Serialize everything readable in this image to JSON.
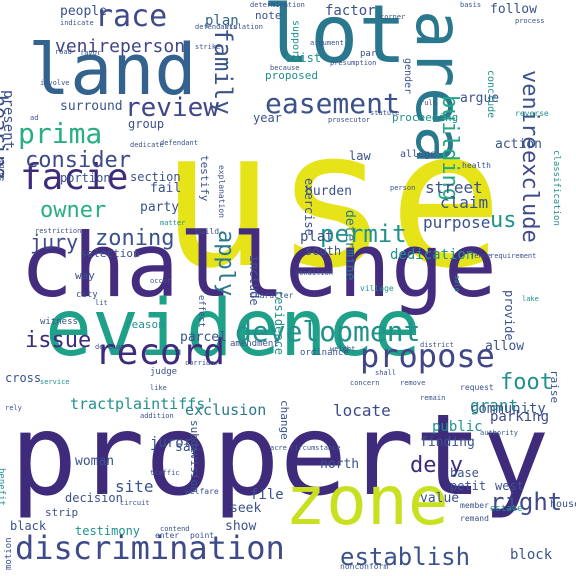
{
  "words": [
    {
      "text": "use",
      "color": "#e6e419"
    },
    {
      "text": "property",
      "color": "#3f2b7c"
    },
    {
      "text": "challenge",
      "color": "#442d7f"
    },
    {
      "text": "evidence",
      "color": "#1fa088"
    },
    {
      "text": "land",
      "color": "#32628d"
    },
    {
      "text": "lot",
      "color": "#2a788e"
    },
    {
      "text": "area",
      "color": "#2a788e"
    },
    {
      "text": "zone",
      "color": "#c8e020"
    },
    {
      "text": "discrimination",
      "color": "#3e4a89"
    },
    {
      "text": "record",
      "color": "#3f2b7c"
    },
    {
      "text": "propose",
      "color": "#404688"
    },
    {
      "text": "development",
      "color": "#21918c"
    },
    {
      "text": "race",
      "color": "#3e4a89"
    },
    {
      "text": "easement",
      "color": "#3b528b"
    },
    {
      "text": "facie",
      "color": "#3f2b7c"
    },
    {
      "text": "prima",
      "color": "#29af7f"
    },
    {
      "text": "review",
      "color": "#404688"
    },
    {
      "text": "family",
      "color": "#3b528b"
    },
    {
      "text": "consider",
      "color": "#3e4a89"
    },
    {
      "text": "owner",
      "color": "#29af7f"
    },
    {
      "text": "zoning",
      "color": "#3b528b"
    },
    {
      "text": "permit",
      "color": "#21918c"
    },
    {
      "text": "apply",
      "color": "#2a788e"
    },
    {
      "text": "jury",
      "color": "#3e4a89"
    },
    {
      "text": "issue",
      "color": "#3f2b7c"
    },
    {
      "text": "foot",
      "color": "#21918c"
    },
    {
      "text": "hearing",
      "color": "#3e4a89"
    },
    {
      "text": "venireperson",
      "color": "#404688"
    },
    {
      "text": "building",
      "color": "#22a884"
    },
    {
      "text": "venire",
      "color": "#3b528b"
    },
    {
      "text": "exclude",
      "color": "#3e4a89"
    },
    {
      "text": "right",
      "color": "#3e4a89"
    },
    {
      "text": "establish",
      "color": "#3b528b"
    },
    {
      "text": "deny",
      "color": "#3f2b7c"
    },
    {
      "text": "us",
      "color": "#21918c"
    },
    {
      "text": "street",
      "color": "#3b528b"
    },
    {
      "text": "claim",
      "color": "#3b528b"
    },
    {
      "text": "grant",
      "color": "#21918c"
    },
    {
      "text": "locate",
      "color": "#3e4a89"
    },
    {
      "text": "exclusion",
      "color": "#2a788e"
    },
    {
      "text": "purpose",
      "color": "#3b528b"
    },
    {
      "text": "tract",
      "color": "#21918c"
    },
    {
      "text": "plaintiffs'",
      "color": "#21918c"
    },
    {
      "text": "site",
      "color": "#3b528b"
    },
    {
      "text": "community",
      "color": "#3b528b"
    },
    {
      "text": "people",
      "color": "#3b528b"
    },
    {
      "text": "plan",
      "color": "#32628d"
    },
    {
      "text": "factor",
      "color": "#3b528b"
    },
    {
      "text": "determine",
      "color": "#2a788e"
    },
    {
      "text": "plat",
      "color": "#3b528b"
    },
    {
      "text": "dedication",
      "color": "#21918c"
    },
    {
      "text": "parking",
      "color": "#3e4a89"
    },
    {
      "text": "public",
      "color": "#21918c"
    },
    {
      "text": "exercise",
      "color": "#3b528b"
    },
    {
      "text": "burden",
      "color": "#3b528b"
    },
    {
      "text": "residence",
      "color": "#21918c"
    },
    {
      "text": "include",
      "color": "#3b528b"
    },
    {
      "text": "present",
      "color": "#3b528b"
    },
    {
      "text": "surround",
      "color": "#3b528b"
    },
    {
      "text": "group",
      "color": "#3b528b"
    },
    {
      "text": "year",
      "color": "#3b528b"
    },
    {
      "text": "argue",
      "color": "#3b528b"
    },
    {
      "text": "action",
      "color": "#3b528b"
    },
    {
      "text": "proceeding",
      "color": "#21918c"
    },
    {
      "text": "law",
      "color": "#3b528b"
    },
    {
      "text": "allege",
      "color": "#3b528b"
    },
    {
      "text": "fail",
      "color": "#3b528b"
    },
    {
      "text": "party",
      "color": "#3b528b"
    },
    {
      "text": "section",
      "color": "#3b528b"
    },
    {
      "text": "portion",
      "color": "#3b528b"
    },
    {
      "text": "testify",
      "color": "#3b528b"
    },
    {
      "text": "selection",
      "color": "#3b528b"
    },
    {
      "text": "south",
      "color": "#3b528b"
    },
    {
      "text": "way",
      "color": "#3b528b"
    },
    {
      "text": "note",
      "color": "#3b528b"
    },
    {
      "text": "exist",
      "color": "#21918c"
    },
    {
      "text": "follow",
      "color": "#3b528b"
    },
    {
      "text": "proposed",
      "color": "#21918c"
    },
    {
      "text": "reason",
      "color": "#21918c"
    },
    {
      "text": "parcel",
      "color": "#3b528b"
    },
    {
      "text": "allow",
      "color": "#3b528b"
    },
    {
      "text": "finding",
      "color": "#3b528b"
    },
    {
      "text": "juror",
      "color": "#3b528b"
    },
    {
      "text": "say",
      "color": "#3b528b"
    },
    {
      "text": "north",
      "color": "#3b528b"
    },
    {
      "text": "woman",
      "color": "#3b528b"
    },
    {
      "text": "base",
      "color": "#3b528b"
    },
    {
      "text": "petit",
      "color": "#3b528b"
    },
    {
      "text": "west",
      "color": "#3b528b"
    },
    {
      "text": "decision",
      "color": "#3b528b"
    },
    {
      "text": "subdivision",
      "color": "#3b528b"
    },
    {
      "text": "file",
      "color": "#3b528b"
    },
    {
      "text": "seek",
      "color": "#3b528b"
    },
    {
      "text": "value",
      "color": "#3b528b"
    },
    {
      "text": "strip",
      "color": "#3b528b"
    },
    {
      "text": "testimony",
      "color": "#21918c"
    },
    {
      "text": "show",
      "color": "#3b528b"
    },
    {
      "text": "block",
      "color": "#3b528b"
    },
    {
      "text": "black",
      "color": "#3b528b"
    },
    {
      "text": "provide",
      "color": "#3b528b"
    },
    {
      "text": "cross",
      "color": "#3b528b"
    },
    {
      "text": "motion",
      "color": "#3b528b"
    },
    {
      "text": "witness",
      "color": "#3b528b"
    },
    {
      "text": "support",
      "color": "#21918c"
    },
    {
      "text": "gender",
      "color": "#3b528b"
    },
    {
      "text": "conclude",
      "color": "#21918c"
    },
    {
      "text": "classification",
      "color": "#21918c"
    },
    {
      "text": "amendment",
      "color": "#3b528b"
    },
    {
      "text": "ordinance",
      "color": "#3b528b"
    },
    {
      "text": "change",
      "color": "#3b528b"
    },
    {
      "text": "estate",
      "color": "#21918c"
    },
    {
      "text": "judge",
      "color": "#3b528b"
    },
    {
      "text": "raise",
      "color": "#3b528b"
    },
    {
      "text": "house",
      "color": "#3b528b"
    },
    {
      "text": "city",
      "color": "#3b528b"
    },
    {
      "text": "effect",
      "color": "#3b528b"
    },
    {
      "text": "village",
      "color": "#21918c"
    },
    {
      "text": "explanation",
      "color": "#3b528b"
    },
    {
      "text": "character",
      "color": "#3b528b"
    },
    {
      "text": "nonconform",
      "color": "#3b528b"
    },
    {
      "text": "benefit",
      "color": "#21918c"
    },
    {
      "text": "request",
      "color": "#3b528b"
    },
    {
      "text": "welfare",
      "color": "#3b528b"
    },
    {
      "text": "enter",
      "color": "#3b528b"
    },
    {
      "text": "point",
      "color": "#3b528b"
    },
    {
      "text": "member",
      "color": "#3b528b"
    },
    {
      "text": "remand",
      "color": "#3b528b"
    },
    {
      "text": "health",
      "color": "#3b528b"
    },
    {
      "text": "reverse",
      "color": "#21918c"
    },
    {
      "text": "build",
      "color": "#3b528b"
    },
    {
      "text": "matter",
      "color": "#21918c"
    },
    {
      "text": "restriction",
      "color": "#3b528b"
    },
    {
      "text": "sale",
      "color": "#21918c"
    },
    {
      "text": "statute",
      "color": "#3b528b"
    },
    {
      "text": "defendants'",
      "color": "#3b528b"
    },
    {
      "text": "dedicate",
      "color": "#3b528b"
    },
    {
      "text": "prosecutor",
      "color": "#3b528b"
    },
    {
      "text": "presumption",
      "color": "#3b528b"
    },
    {
      "text": "because",
      "color": "#3b528b"
    },
    {
      "text": "agree",
      "color": "#3b528b"
    },
    {
      "text": "strike",
      "color": "#3b528b"
    },
    {
      "text": "violation",
      "color": "#3b528b"
    },
    {
      "text": "determination",
      "color": "#3b528b"
    },
    {
      "text": "indicate",
      "color": "#3b528b"
    },
    {
      "text": "involve",
      "color": "#3b528b"
    },
    {
      "text": "favor",
      "color": "#3b528b"
    },
    {
      "text": "road",
      "color": "#3b528b"
    },
    {
      "text": "basis",
      "color": "#3b528b"
    },
    {
      "text": "corner",
      "color": "#3b528b"
    },
    {
      "text": "argument",
      "color": "#3b528b"
    },
    {
      "text": "par",
      "color": "#3b528b"
    },
    {
      "text": "rule",
      "color": "#3b528b"
    },
    {
      "text": "process",
      "color": "#3b528b"
    },
    {
      "text": "person",
      "color": "#3b528b"
    },
    {
      "text": "fence",
      "color": "#3b528b"
    },
    {
      "text": "requirement",
      "color": "#3b528b"
    },
    {
      "text": "lake",
      "color": "#21918c"
    },
    {
      "text": "district",
      "color": "#3b528b"
    },
    {
      "text": "corridor",
      "color": "#3b528b"
    },
    {
      "text": "weight",
      "color": "#3b528b"
    },
    {
      "text": "service",
      "color": "#21918c"
    },
    {
      "text": "addition",
      "color": "#3b528b"
    },
    {
      "text": "traffic",
      "color": "#3b528b"
    },
    {
      "text": "circuit",
      "color": "#3b528b"
    },
    {
      "text": "contend",
      "color": "#3b528b"
    },
    {
      "text": "authority",
      "color": "#3b528b"
    },
    {
      "text": "circumstance",
      "color": "#3b528b"
    },
    {
      "text": "acre",
      "color": "#3b528b"
    },
    {
      "text": "remove",
      "color": "#3b528b"
    },
    {
      "text": "concern",
      "color": "#3b528b"
    },
    {
      "text": "condition",
      "color": "#3b528b"
    },
    {
      "text": "rely",
      "color": "#3b528b"
    },
    {
      "text": "lit",
      "color": "#3b528b"
    },
    {
      "text": "develop",
      "color": "#3b528b"
    },
    {
      "text": "shall",
      "color": "#3b528b"
    },
    {
      "text": "like",
      "color": "#3b528b"
    },
    {
      "text": "remain",
      "color": "#3b528b"
    },
    {
      "text": "occur",
      "color": "#3b528b"
    },
    {
      "text": "ad",
      "color": "#3b528b"
    },
    {
      "text": "defendant",
      "color": "#3b528b"
    }
  ]
}
